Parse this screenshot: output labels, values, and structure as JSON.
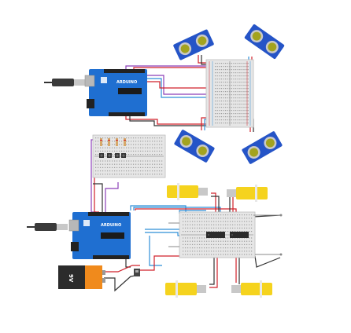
{
  "boards": {
    "top_board_label": "ARDUINO",
    "bottom_board_label": "ARDUINO"
  },
  "battery": {
    "label": "9V"
  },
  "colors": {
    "arduino_blue": "#1f6fd1",
    "breadboard": "#e6e6e6",
    "sensor_blue": "#2554c7",
    "motor_yellow": "#f5d31e",
    "wire_red": "#d0202a",
    "wire_black": "#333333",
    "wire_purple": "#8b3fb8",
    "wire_blue": "#2f8fd8",
    "battery_orange": "#f08a1c"
  },
  "icons": [
    "usb-plug-icon",
    "ultrasonic-sensor-icon",
    "dc-motor-icon",
    "motor-driver-chip-icon",
    "battery-icon",
    "switch-icon"
  ]
}
